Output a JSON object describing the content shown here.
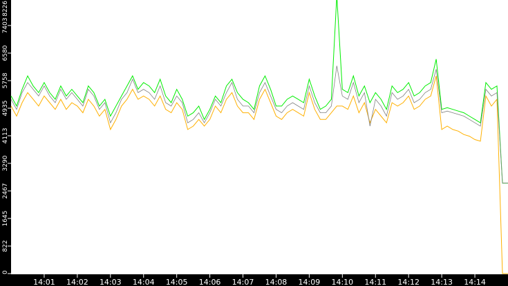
{
  "chart_data": {
    "type": "line",
    "title": "",
    "xlabel": "",
    "ylabel": "",
    "ylim": [
      0,
      8226
    ],
    "xlim": [
      "14:00:00",
      "14:15:00"
    ],
    "grid": false,
    "background": "#ffffff",
    "axis_background": "#000000",
    "y_ticks": [
      "0",
      "822",
      "1645",
      "2467",
      "3290",
      "4113",
      "4935",
      "5758",
      "6580",
      "7403",
      "8226"
    ],
    "x_ticks": [
      "14:01",
      "14:02",
      "14:03",
      "14:04",
      "14:05",
      "14:06",
      "14:07",
      "14:08",
      "14:09",
      "14:10",
      "14:11",
      "14:12",
      "14:13",
      "14:14"
    ],
    "x": [
      "14:00:00",
      "14:00:10",
      "14:00:20",
      "14:00:30",
      "14:00:40",
      "14:00:50",
      "14:01:00",
      "14:01:10",
      "14:01:20",
      "14:01:30",
      "14:01:40",
      "14:01:50",
      "14:02:00",
      "14:02:10",
      "14:02:20",
      "14:02:30",
      "14:02:40",
      "14:02:50",
      "14:03:00",
      "14:03:10",
      "14:03:20",
      "14:03:30",
      "14:03:40",
      "14:03:50",
      "14:04:00",
      "14:04:10",
      "14:04:20",
      "14:04:30",
      "14:04:40",
      "14:04:50",
      "14:05:00",
      "14:05:10",
      "14:05:20",
      "14:05:30",
      "14:05:40",
      "14:05:50",
      "14:06:00",
      "14:06:10",
      "14:06:20",
      "14:06:30",
      "14:06:40",
      "14:06:50",
      "14:07:00",
      "14:07:10",
      "14:07:20",
      "14:07:30",
      "14:07:40",
      "14:07:50",
      "14:08:00",
      "14:08:10",
      "14:08:20",
      "14:08:30",
      "14:08:40",
      "14:08:50",
      "14:09:00",
      "14:09:10",
      "14:09:20",
      "14:09:30",
      "14:09:40",
      "14:09:50",
      "14:10:00",
      "14:10:10",
      "14:10:20",
      "14:10:30",
      "14:10:40",
      "14:10:50",
      "14:11:00",
      "14:11:10",
      "14:11:20",
      "14:11:30",
      "14:11:40",
      "14:11:50",
      "14:12:00",
      "14:12:10",
      "14:12:20",
      "14:12:30",
      "14:12:40",
      "14:12:50",
      "14:13:00",
      "14:13:10",
      "14:13:20",
      "14:13:30",
      "14:13:40",
      "14:13:50",
      "14:14:00",
      "14:14:10",
      "14:14:20",
      "14:14:30",
      "14:14:40",
      "14:14:50",
      "14:15:00"
    ],
    "series": [
      {
        "color": "#808080",
        "values": [
          5200,
          4900,
          5400,
          5700,
          5500,
          5300,
          5600,
          5300,
          5100,
          5500,
          5200,
          5400,
          5200,
          5000,
          5500,
          5300,
          4900,
          5100,
          4500,
          4800,
          5200,
          5400,
          5800,
          5400,
          5500,
          5400,
          5200,
          5600,
          5100,
          5000,
          5300,
          5100,
          4500,
          4600,
          4800,
          4500,
          4800,
          5200,
          5000,
          5400,
          5700,
          5200,
          5000,
          5000,
          4800,
          5400,
          5700,
          5300,
          4900,
          4800,
          5000,
          5100,
          5000,
          4900,
          5600,
          5100,
          4800,
          4800,
          5000,
          6200,
          5300,
          5200,
          5700,
          5100,
          5400,
          4400,
          5200,
          5000,
          4700,
          5400,
          5200,
          5300,
          5500,
          5100,
          5200,
          5400,
          5500,
          6100,
          4800,
          4850,
          4800,
          4750,
          4700,
          4600,
          4500,
          4400,
          5500,
          5300,
          5400,
          2700,
          2700
        ]
      },
      {
        "color": "#ffb000",
        "values": [
          5000,
          4700,
          5100,
          5400,
          5200,
          5000,
          5300,
          5100,
          4900,
          5200,
          4900,
          5100,
          5000,
          4800,
          5200,
          5000,
          4700,
          4900,
          4300,
          4600,
          5000,
          5200,
          5500,
          5200,
          5300,
          5200,
          5000,
          5300,
          4900,
          4800,
          5100,
          4900,
          4300,
          4400,
          4600,
          4400,
          4600,
          5000,
          4800,
          5200,
          5400,
          5000,
          4800,
          4800,
          4600,
          5200,
          5500,
          5100,
          4700,
          4600,
          4800,
          4900,
          4800,
          4700,
          5400,
          4900,
          4600,
          4600,
          4800,
          5000,
          5000,
          4900,
          5300,
          4800,
          5100,
          4500,
          4900,
          4700,
          4500,
          5100,
          5000,
          5100,
          5300,
          4900,
          5000,
          5200,
          5300,
          5900,
          4300,
          4400,
          4300,
          4250,
          4150,
          4100,
          4000,
          3950,
          5300,
          5000,
          5200,
          0,
          0
        ]
      },
      {
        "color": "#00ee00",
        "values": [
          5300,
          5000,
          5500,
          5900,
          5600,
          5400,
          5700,
          5400,
          5200,
          5600,
          5300,
          5500,
          5300,
          5100,
          5600,
          5400,
          5000,
          5200,
          4700,
          5000,
          5300,
          5600,
          5900,
          5500,
          5700,
          5600,
          5400,
          5800,
          5300,
          5100,
          5500,
          5200,
          4700,
          4800,
          5000,
          4600,
          4900,
          5300,
          5100,
          5600,
          5800,
          5400,
          5200,
          5100,
          4900,
          5600,
          5900,
          5500,
          5000,
          5000,
          5200,
          5300,
          5200,
          5100,
          5800,
          5300,
          4900,
          5000,
          5200,
          8300,
          5500,
          5400,
          5900,
          5300,
          5600,
          5100,
          5400,
          5200,
          4900,
          5600,
          5400,
          5500,
          5700,
          5300,
          5400,
          5600,
          5700,
          6400,
          4900,
          4950,
          4900,
          4850,
          4800,
          4700,
          4600,
          4500,
          5700,
          5500,
          5600,
          2700,
          2700
        ]
      }
    ]
  }
}
